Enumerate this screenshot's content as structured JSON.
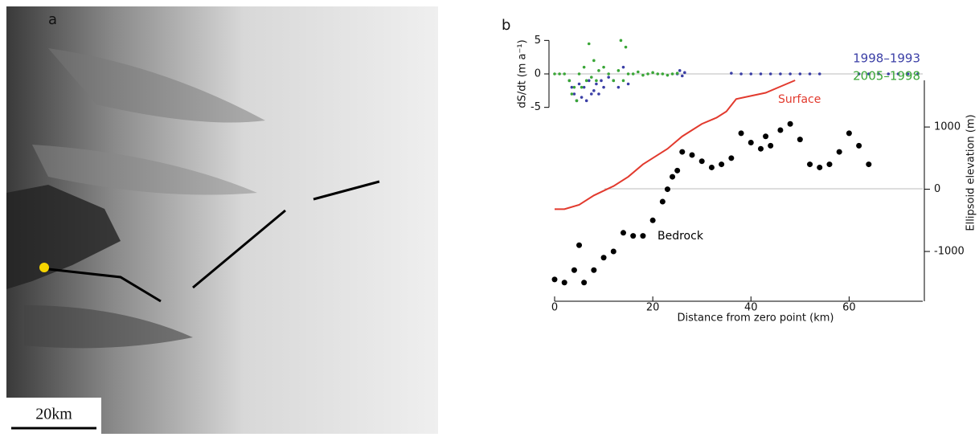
{
  "panel_a": {
    "label": "a",
    "scale_bar": "20km"
  },
  "chart_data": [
    {
      "type": "scatter",
      "panel_label": "b",
      "ylabel": "dS/dt (m a⁻¹)",
      "xlim": [
        0,
        75
      ],
      "ylim": [
        -6,
        6
      ],
      "yticks": [
        5,
        0,
        -5
      ],
      "series": [
        {
          "name": "1998–1993",
          "color": "#3b3fa6",
          "x": [
            3,
            3.5,
            4,
            4.5,
            5,
            5.5,
            6,
            6.5,
            7,
            7.5,
            8,
            8.5,
            9,
            9.5,
            10,
            11,
            12,
            13,
            14,
            15,
            25,
            25.5,
            26,
            26.5,
            36,
            38,
            40,
            42,
            44,
            46,
            48,
            50,
            52,
            54,
            62,
            64,
            66,
            68,
            70,
            72,
            74
          ],
          "values": [
            -1,
            -2,
            -3,
            -4,
            -1.5,
            -3.5,
            -2,
            -4,
            -1,
            -3,
            -2.5,
            -1.5,
            -3,
            -1,
            -2,
            -0.5,
            -1,
            -2,
            1,
            -1.5,
            0,
            0.5,
            -0.3,
            0.2,
            0.1,
            0,
            0,
            0,
            0,
            0,
            0,
            0,
            0,
            0,
            0,
            0,
            0,
            0,
            0,
            0,
            0
          ]
        },
        {
          "name": "2005–1998",
          "color": "#3aa637",
          "x": [
            0,
            1,
            2,
            3,
            3.5,
            4,
            4.5,
            5,
            5.5,
            6,
            6.5,
            7,
            7.5,
            8,
            8.5,
            9,
            10,
            11,
            12,
            13,
            13.5,
            14,
            14.5,
            15,
            16,
            17,
            18,
            19,
            20,
            21,
            22,
            23,
            24,
            25
          ],
          "values": [
            0,
            0,
            0,
            -1,
            -3,
            -2,
            -4,
            0,
            -2,
            1,
            -1,
            4.5,
            -0.5,
            2,
            -1,
            0.5,
            1,
            0,
            -1,
            0.5,
            5,
            -1,
            4,
            0,
            0,
            0.3,
            -0.2,
            0,
            0.2,
            0,
            0,
            -0.2,
            0,
            0.1
          ]
        }
      ]
    },
    {
      "type": "line",
      "xlabel": "Distance from zero point (km)",
      "ylabel": "Ellipsoid elevation (m)",
      "xlim": [
        0,
        75
      ],
      "xticks": [
        0,
        20,
        40,
        60
      ],
      "ylim": [
        -1800,
        1750
      ],
      "yticks": [
        1000,
        0,
        -1000
      ],
      "series": [
        {
          "name": "Surface",
          "color": "#e23a2e",
          "style": "line",
          "x": [
            0,
            2,
            5,
            8,
            12,
            15,
            18,
            20,
            23,
            26,
            28,
            30,
            33,
            35,
            37,
            40,
            43,
            46,
            49
          ],
          "values": [
            -320,
            -320,
            -250,
            -100,
            50,
            200,
            400,
            500,
            650,
            850,
            950,
            1050,
            1150,
            1250,
            1450,
            1500,
            1550,
            1650,
            1750
          ]
        },
        {
          "name": "Bedrock",
          "color": "#000000",
          "style": "points",
          "x": [
            0,
            2,
            4,
            5,
            6,
            8,
            10,
            12,
            14,
            16,
            18,
            20,
            22,
            23,
            24,
            25,
            26,
            28,
            30,
            32,
            34,
            36,
            38,
            40,
            42,
            43,
            44,
            46,
            48,
            50,
            52,
            54,
            56,
            58,
            60,
            62,
            64
          ],
          "values": [
            -1450,
            -1500,
            -1300,
            -900,
            -1500,
            -1300,
            -1100,
            -1000,
            -700,
            -750,
            -750,
            -500,
            -200,
            0,
            200,
            300,
            600,
            550,
            450,
            350,
            400,
            500,
            900,
            750,
            650,
            850,
            700,
            950,
            1050,
            800,
            400,
            350,
            400,
            600,
            900,
            700,
            400
          ]
        }
      ]
    }
  ]
}
